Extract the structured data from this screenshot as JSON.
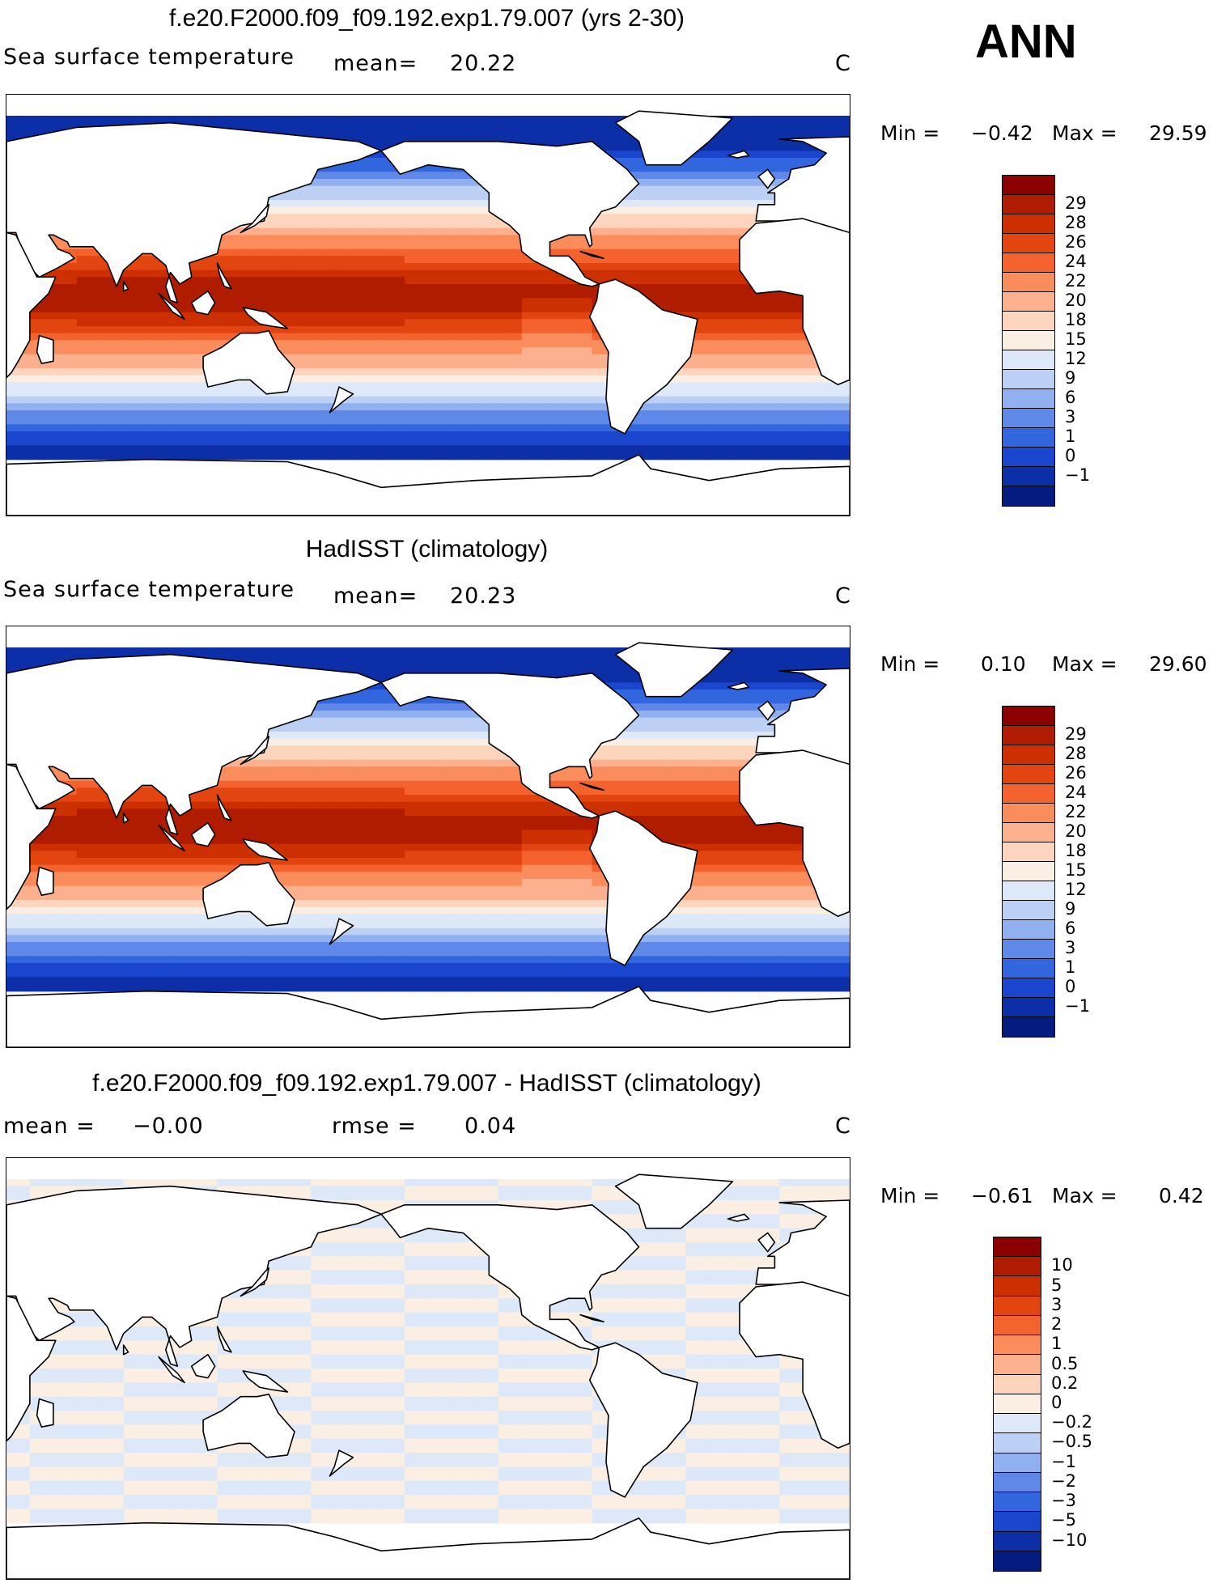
{
  "season": "ANN",
  "land_color": "#ffffff",
  "panels": [
    {
      "id": "model",
      "title": "f.e20.F2000.f09_f09.192.exp1.79.007 (yrs 2-30)",
      "variable": "Sea surface temperature",
      "stat1": "mean=",
      "stat1_value": "20.22",
      "stat2": "",
      "stat2_value": "",
      "units": "C",
      "min_label": "Min =",
      "min_value": "−0.42",
      "max_label": "Max =",
      "max_value": "29.59",
      "levels": [
        "29",
        "28",
        "26",
        "24",
        "22",
        "20",
        "18",
        "15",
        "12",
        "9",
        "6",
        "3",
        "1",
        "0",
        "−1"
      ],
      "colors": [
        "#8b0000",
        "#b01c00",
        "#cc3000",
        "#e34510",
        "#f4632e",
        "#fb8d5c",
        "#fcb08e",
        "#fdd5bd",
        "#fbeee2",
        "#dde8f8",
        "#bcd0f6",
        "#90b0f0",
        "#5f88e8",
        "#3266de",
        "#1946cc",
        "#0c2fa8",
        "#041b80"
      ]
    },
    {
      "id": "obs",
      "title": "HadISST (climatology)",
      "variable": "Sea surface temperature",
      "stat1": "mean=",
      "stat1_value": "20.23",
      "stat2": "",
      "stat2_value": "",
      "units": "C",
      "min_label": "Min =",
      "min_value": "0.10",
      "max_label": "Max =",
      "max_value": "29.60",
      "levels": [
        "29",
        "28",
        "26",
        "24",
        "22",
        "20",
        "18",
        "15",
        "12",
        "9",
        "6",
        "3",
        "1",
        "0",
        "−1"
      ],
      "colors": [
        "#8b0000",
        "#b01c00",
        "#cc3000",
        "#e34510",
        "#f4632e",
        "#fb8d5c",
        "#fcb08e",
        "#fdd5bd",
        "#fbeee2",
        "#dde8f8",
        "#bcd0f6",
        "#90b0f0",
        "#5f88e8",
        "#3266de",
        "#1946cc",
        "#0c2fa8",
        "#041b80"
      ]
    },
    {
      "id": "diff",
      "title": "f.e20.F2000.f09_f09.192.exp1.79.007 - HadISST (climatology)",
      "variable": "",
      "stat1": "mean =",
      "stat1_value": "−0.00",
      "stat2": "rmse =",
      "stat2_value": "0.04",
      "units": "C",
      "min_label": "Min =",
      "min_value": "−0.61",
      "max_label": "Max =",
      "max_value": "0.42",
      "levels": [
        "10",
        "5",
        "3",
        "2",
        "1",
        "0.5",
        "0.2",
        "0",
        "−0.2",
        "−0.5",
        "−1",
        "−2",
        "−3",
        "−5",
        "−10"
      ],
      "colors": [
        "#8b0000",
        "#b01c00",
        "#cc3000",
        "#e34510",
        "#f4632e",
        "#fb8d5c",
        "#fcb08e",
        "#fdd5bd",
        "#fbeee2",
        "#dde8f8",
        "#bcd0f6",
        "#90b0f0",
        "#5f88e8",
        "#3266de",
        "#1946cc",
        "#0c2fa8",
        "#041b80"
      ]
    }
  ]
}
